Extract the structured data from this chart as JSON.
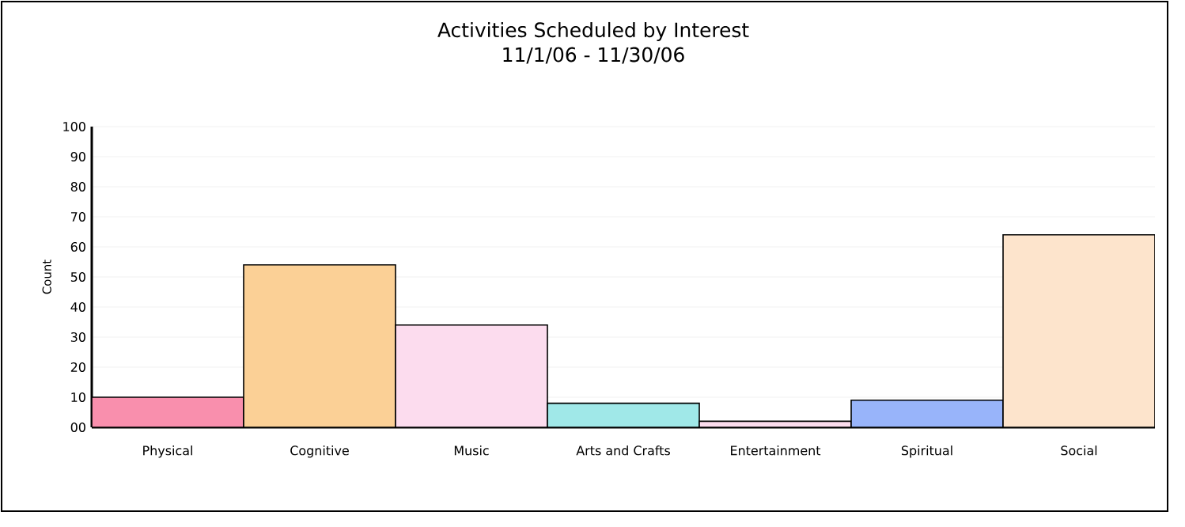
{
  "chart_data": {
    "type": "bar",
    "title": "Activities Scheduled by Interest",
    "subtitle": "11/1/06 - 11/30/06",
    "ylabel": "Count",
    "categories": [
      "Physical",
      "Cognitive",
      "Music",
      "Arts and Crafts",
      "Entertainment",
      "Spiritual",
      "Social"
    ],
    "values": [
      10,
      54,
      34,
      8,
      2,
      9,
      64
    ],
    "colors": [
      "#f98fad",
      "#fbd096",
      "#fcdcee",
      "#a0e8e8",
      "#fcdcee",
      "#98b4fa",
      "#fde4cc"
    ],
    "ylim": [
      0,
      100
    ],
    "yticks": [
      {
        "value": 0,
        "label": "00"
      },
      10,
      20,
      30,
      40,
      50,
      60,
      70,
      80,
      90,
      100
    ],
    "grid": "y"
  }
}
